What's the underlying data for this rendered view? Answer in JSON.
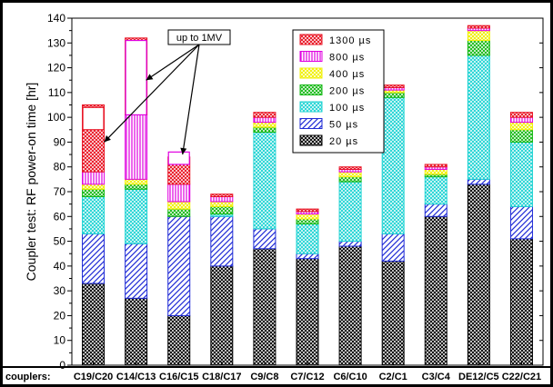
{
  "chart_data": {
    "type": "bar",
    "stacked": true,
    "ylabel": "Coupler test: RF power-on time [hr]",
    "xlabel_prefix": "couplers:",
    "ylim": [
      0,
      140
    ],
    "yticks": [
      0,
      10,
      20,
      30,
      40,
      50,
      60,
      70,
      80,
      90,
      100,
      110,
      120,
      130,
      140
    ],
    "grid": false,
    "legend_position": "top-center",
    "categories": [
      "C19/C20",
      "C14/C13",
      "C16/C15",
      "C18/C17",
      "C9/C8",
      "C7/C12",
      "C6/C10",
      "C2/C1",
      "C3/C4",
      "DE12/C5",
      "C22/C21"
    ],
    "series": [
      {
        "name": "20 µs",
        "color": "#000000",
        "pattern": "crosshatch",
        "values": [
          33,
          27,
          20,
          40,
          47,
          43,
          48,
          42,
          60,
          73,
          51
        ]
      },
      {
        "name": "50 µs",
        "color": "#1f2bd6",
        "pattern": "diagonal",
        "values": [
          20,
          22,
          40,
          20,
          8,
          2,
          2,
          11,
          5,
          2,
          13
        ]
      },
      {
        "name": "100 µs",
        "color": "#1fd3d3",
        "pattern": "crosshatch",
        "values": [
          15,
          22,
          0,
          1,
          39,
          12,
          24,
          55,
          11,
          50,
          26
        ]
      },
      {
        "name": "200 µs",
        "color": "#14b814",
        "pattern": "crosshatch",
        "values": [
          3,
          2,
          3,
          3,
          2,
          2,
          2,
          2,
          1,
          6,
          5
        ]
      },
      {
        "name": "400 µs",
        "color": "#f0f000",
        "pattern": "crosshatch",
        "values": [
          2,
          2,
          3,
          2,
          2,
          2,
          2,
          1,
          2,
          4,
          3
        ]
      },
      {
        "name": "800 µs",
        "color": "#e000e0",
        "pattern": "vertical",
        "values": [
          5,
          26,
          7,
          2,
          2,
          1,
          1,
          1,
          1,
          1,
          2
        ]
      },
      {
        "name": "1300 µs",
        "color": "#e81020",
        "pattern": "crosshatch",
        "values": [
          27,
          31,
          11,
          1,
          2,
          1,
          1,
          1,
          1,
          1,
          2
        ]
      }
    ],
    "annotation": {
      "text": "up to 1MV"
    }
  }
}
